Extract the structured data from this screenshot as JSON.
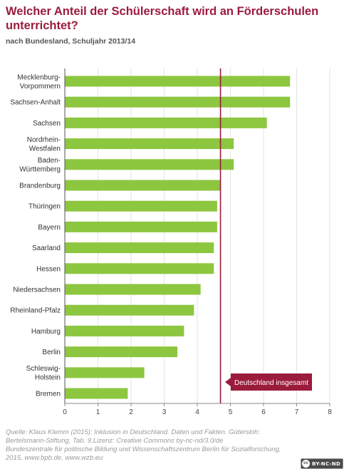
{
  "header": {
    "title": "Welcher Anteil der Schülerschaft wird an Förderschulen unterrichtet?",
    "subtitle": "nach Bundesland, Schuljahr 2013/14"
  },
  "chart_data": {
    "type": "bar",
    "orientation": "horizontal",
    "categories": [
      "Mecklenburg-Vorpommern",
      "Sachsen-Anhalt",
      "Sachsen",
      "Nordrhein-Westfalen",
      "Baden-Württemberg",
      "Brandenburg",
      "Thüringen",
      "Bayern",
      "Saarland",
      "Hessen",
      "Niedersachsen",
      "Rheinland-Pfalz",
      "Hamburg",
      "Berlin",
      "Schleswig-Holstein",
      "Bremen"
    ],
    "category_lines": [
      [
        "Mecklenburg-",
        "Vorpommern"
      ],
      [
        "Sachsen-Anhalt"
      ],
      [
        "Sachsen"
      ],
      [
        "Nordrhein-",
        "Westfalen"
      ],
      [
        "Baden-",
        "Württemberg"
      ],
      [
        "Brandenburg"
      ],
      [
        "Thüringen"
      ],
      [
        "Bayern"
      ],
      [
        "Saarland"
      ],
      [
        "Hessen"
      ],
      [
        "Niedersachsen"
      ],
      [
        "Rheinland-Pfalz"
      ],
      [
        "Hamburg"
      ],
      [
        "Berlin"
      ],
      [
        "Schleswig-",
        "Holstein"
      ],
      [
        "Bremen"
      ]
    ],
    "values": [
      6.8,
      6.8,
      6.1,
      5.1,
      5.1,
      4.7,
      4.6,
      4.6,
      4.5,
      4.5,
      4.1,
      3.9,
      3.6,
      3.4,
      2.4,
      1.9
    ],
    "xlim": [
      0,
      8
    ],
    "xticks": [
      0,
      1,
      2,
      3,
      4,
      5,
      6,
      7,
      8
    ],
    "grid": "vertical",
    "reference_line": {
      "value": 4.7,
      "label": "Deutschland insgesamt",
      "color": "#9b1b3c"
    },
    "bar_color": "#8dc63f"
  },
  "footer": {
    "source_lines": [
      "Quelle: Klaus Klemm (2015): Inklusion in Deutschland. Daten und Fakten. Gütersloh: Bertelsmann-Stiftung, Tab. 9.Lizenz: Creative Commons by-nc-nd/3.0/de",
      "Bundeszentrale für politische Bildung und Wissenschaftszentrum Berlin für Sozialforschung, 2015, www.bpb.de, www.wzb.eu"
    ],
    "license_badge": {
      "icon_label": "cc",
      "text": "BY-NC-ND"
    }
  }
}
